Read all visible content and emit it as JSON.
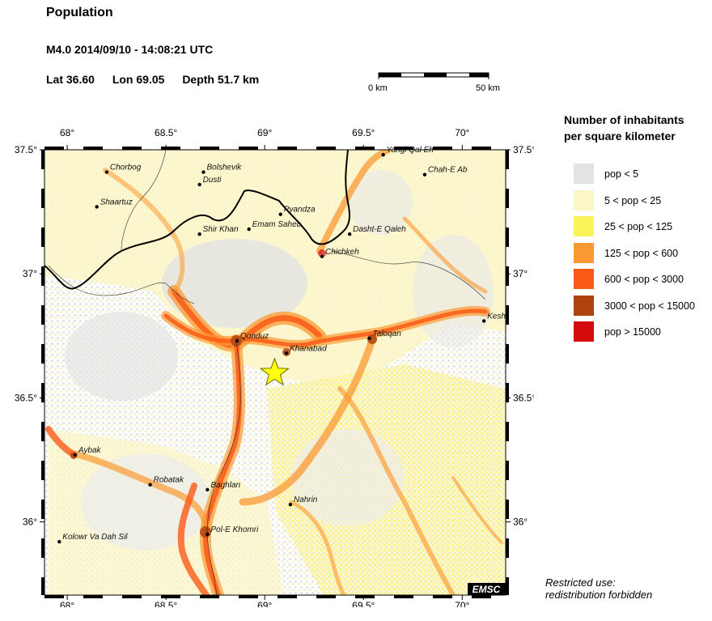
{
  "header": {
    "title": "Population",
    "event": "M4.0  2014/09/10 - 14:08:21 UTC",
    "lat": "Lat 36.60",
    "lon": "Lon  69.05",
    "depth": "Depth  51.7 km"
  },
  "scale": {
    "left_label": "0 km",
    "right_label": "50 km"
  },
  "map": {
    "lon_ticks": [
      "68°",
      "68.5°",
      "69°",
      "69.5°",
      "70°"
    ],
    "lat_ticks": [
      "37.5°",
      "37°",
      "36.5°",
      "36°"
    ],
    "epicenter": {
      "lat": 36.6,
      "lon": 69.05
    },
    "logo": "EMSC",
    "cities": [
      {
        "name": "Chorbog",
        "lon": 68.2,
        "lat": 37.41
      },
      {
        "name": "Bolshevik",
        "lon": 68.69,
        "lat": 37.41
      },
      {
        "name": "Dusti",
        "lon": 68.67,
        "lat": 37.36
      },
      {
        "name": "Shaartuz",
        "lon": 68.15,
        "lat": 37.27
      },
      {
        "name": "Yangi Qal Eh",
        "lon": 69.6,
        "lat": 37.48
      },
      {
        "name": "Chah-E Ab",
        "lon": 69.81,
        "lat": 37.4
      },
      {
        "name": "Pyandza",
        "lon": 69.08,
        "lat": 37.24
      },
      {
        "name": "Emam Saheb",
        "lon": 68.92,
        "lat": 37.18
      },
      {
        "name": "Shir Khan",
        "lon": 68.67,
        "lat": 37.16
      },
      {
        "name": "Dasht-E Qaleh",
        "lon": 69.43,
        "lat": 37.16
      },
      {
        "name": "Chichkeh",
        "lon": 69.29,
        "lat": 37.07
      },
      {
        "name": "Kesh",
        "lon": 70.11,
        "lat": 36.81
      },
      {
        "name": "Qonduz",
        "lon": 68.86,
        "lat": 36.73
      },
      {
        "name": "Khanabad",
        "lon": 69.11,
        "lat": 36.68
      },
      {
        "name": "Taloqan",
        "lon": 69.53,
        "lat": 36.74
      },
      {
        "name": "Aybak",
        "lon": 68.04,
        "lat": 36.27
      },
      {
        "name": "Robatak",
        "lon": 68.42,
        "lat": 36.15
      },
      {
        "name": "Baghlan",
        "lon": 68.71,
        "lat": 36.13
      },
      {
        "name": "Nahrin",
        "lon": 69.13,
        "lat": 36.07
      },
      {
        "name": "Pol-E Khomri",
        "lon": 68.71,
        "lat": 35.95
      },
      {
        "name": "Kolowr Va Dah Sil",
        "lon": 67.96,
        "lat": 35.92
      }
    ]
  },
  "legend": {
    "title_line1": "Number of inhabitants",
    "title_line2": "per square kilometer",
    "items": [
      {
        "label": "pop < 5",
        "color": "#e3e3e3"
      },
      {
        "label": "5 < pop < 25",
        "color": "#fbf6c7"
      },
      {
        "label": "25 < pop < 125",
        "color": "#fbf35a"
      },
      {
        "label": "125 < pop < 600",
        "color": "#fb9a33"
      },
      {
        "label": "600 < pop < 3000",
        "color": "#fb5a16"
      },
      {
        "label": "3000 < pop < 15000",
        "color": "#b0420e"
      },
      {
        "label": "pop > 15000",
        "color": "#d50a0a"
      }
    ]
  },
  "footer": {
    "line1": "Restricted use:",
    "line2": "redistribution forbidden"
  }
}
